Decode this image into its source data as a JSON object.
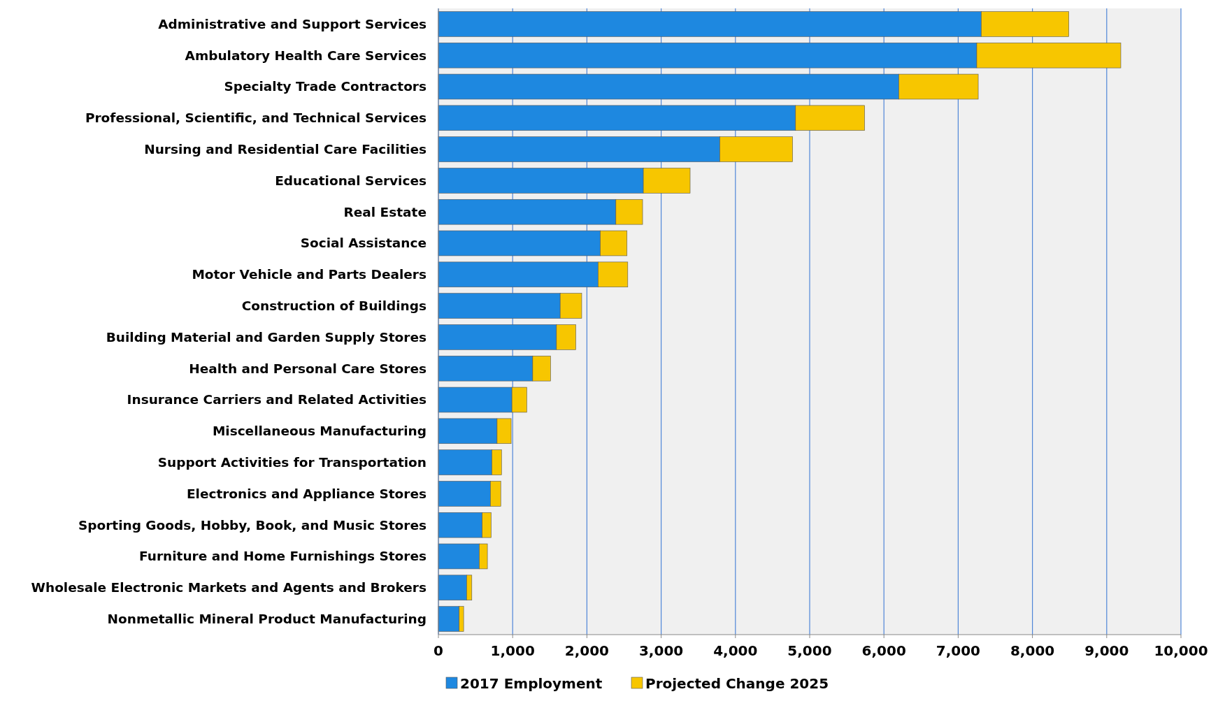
{
  "chart_data": {
    "type": "bar",
    "orientation": "horizontal",
    "stacked": true,
    "categories": [
      "Administrative and Support Services",
      "Ambulatory Health Care Services",
      "Specialty Trade Contractors",
      "Professional, Scientific, and Technical Services",
      "Nursing and Residential Care Facilities",
      "Educational Services",
      "Real Estate",
      "Social Assistance",
      "Motor Vehicle and Parts Dealers",
      "Construction of Buildings",
      "Building Material and Garden Supply Stores",
      "Health and Personal Care Stores",
      "Insurance Carriers and Related Activities",
      "Miscellaneous Manufacturing",
      "Support Activities for Transportation",
      "Electronics and Appliance Stores",
      "Sporting Goods, Hobby, Book, and Music Stores",
      "Furniture and Home Furnishings Stores",
      "Wholesale Electronic Markets and Agents and Brokers",
      "Nonmetallic Mineral Product Manufacturing"
    ],
    "series": [
      {
        "name": "2017 Employment",
        "color": "#1e88e0",
        "values": [
          7310,
          7250,
          6200,
          4810,
          3790,
          2760,
          2390,
          2180,
          2150,
          1640,
          1590,
          1270,
          990,
          790,
          720,
          700,
          590,
          550,
          380,
          280
        ]
      },
      {
        "name": "Projected Change 2025",
        "color": "#f7c600",
        "values": [
          1180,
          1940,
          1070,
          930,
          980,
          630,
          360,
          360,
          400,
          290,
          260,
          240,
          200,
          190,
          130,
          140,
          120,
          110,
          70,
          60
        ]
      }
    ],
    "xlim": [
      0,
      10000
    ],
    "xticks": [
      {
        "value": 0,
        "label": "0"
      },
      {
        "value": 1000,
        "label": "1,000"
      },
      {
        "value": 2000,
        "label": "2,000"
      },
      {
        "value": 3000,
        "label": "3,000"
      },
      {
        "value": 4000,
        "label": "4,000"
      },
      {
        "value": 5000,
        "label": "5,000"
      },
      {
        "value": 6000,
        "label": "6,000"
      },
      {
        "value": 7000,
        "label": "7,000"
      },
      {
        "value": 8000,
        "label": "8,000"
      },
      {
        "value": 9000,
        "label": "9,000"
      },
      {
        "value": 10000,
        "label": "10,000"
      }
    ],
    "grid": "x",
    "legend": "bottom"
  }
}
